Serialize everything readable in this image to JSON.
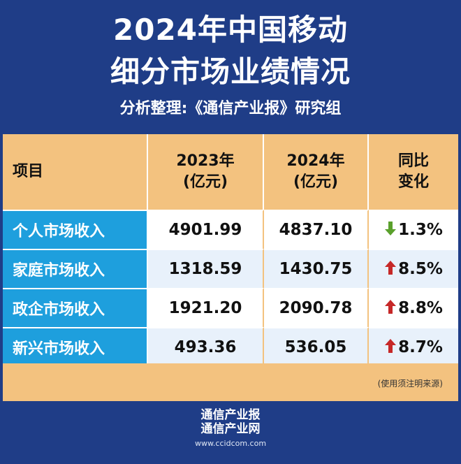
{
  "header": {
    "title_line1": "2024年中国移动",
    "title_line2": "细分市场业绩情况",
    "subtitle": "分析整理:《通信产业报》研究组"
  },
  "table": {
    "columns": [
      {
        "line1": "项目",
        "line2": ""
      },
      {
        "line1": "2023年",
        "line2": "(亿元)"
      },
      {
        "line1": "2024年",
        "line2": "(亿元)"
      },
      {
        "line1": "同比",
        "line2": "变化"
      }
    ],
    "rows": [
      {
        "category": "个人市场收入",
        "y2023": "4901.99",
        "y2024": "4837.10",
        "change": "1.3%",
        "direction": "down"
      },
      {
        "category": "家庭市场收入",
        "y2023": "1318.59",
        "y2024": "1430.75",
        "change": "8.5%",
        "direction": "up"
      },
      {
        "category": "政企市场收入",
        "y2023": "1921.20",
        "y2024": "2090.78",
        "change": "8.8%",
        "direction": "up"
      },
      {
        "category": "新兴市场收入",
        "y2023": "493.36",
        "y2024": "536.05",
        "change": "8.7%",
        "direction": "up"
      }
    ],
    "note": "(使用须注明来源)"
  },
  "footer": {
    "brand_line1": "通信产业报",
    "brand_line2": "通信产业网",
    "site": "www.ccidcom.com"
  },
  "colors": {
    "background": "#1f3d87",
    "header_fill": "#f3c27f",
    "category_fill": "#1e9fdd",
    "arrow_up": "#c62828",
    "arrow_down": "#5aa02c"
  }
}
